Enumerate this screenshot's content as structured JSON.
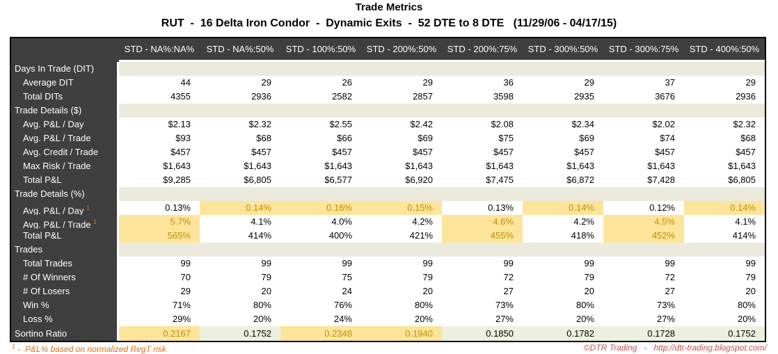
{
  "page": {
    "title": "Trade Metrics",
    "subtitle": "RUT  -  16 Delta Iron Condor  -  Dynamic Exits  -  52 DTE to 8 DTE   (11/29/06 - 04/17/15)",
    "footnote_sup": "1",
    "footnote_text": " -  P&L% based on normalized RegT risk",
    "credit": "©DTR Trading   -   http://dtr-trading.blogspot.com/"
  },
  "colors": {
    "header_bg": "#3f3f3f",
    "section_band_bg": "#ece9dd",
    "highlight_bg": "#fce49b",
    "highlight_text": "#bf8f00",
    "summary_bg": "#ebf1de",
    "footnote_text": "#e36c0a",
    "credit_text": "#c0504d"
  },
  "table": {
    "columns": [
      "STD - NA%:NA%",
      "STD - NA%:50%",
      "STD - 100%:50%",
      "STD - 200%:50%",
      "STD - 200%:75%",
      "STD - 300%:50%",
      "STD - 300%:75%",
      "STD - 400%:50%"
    ],
    "sections": [
      {
        "label": "Days In Trade (DIT)",
        "rows": [
          {
            "label": "Average DIT",
            "values": [
              "44",
              "29",
              "26",
              "29",
              "36",
              "29",
              "37",
              "29"
            ]
          },
          {
            "label": "Total DITs",
            "values": [
              "4355",
              "2936",
              "2582",
              "2857",
              "3598",
              "2935",
              "3676",
              "2936"
            ]
          }
        ]
      },
      {
        "label": "Trade Details ($)",
        "rows": [
          {
            "label": "Avg. P&L / Day",
            "values": [
              "$2.13",
              "$2.32",
              "$2.55",
              "$2.42",
              "$2.08",
              "$2.34",
              "$2.02",
              "$2.32"
            ]
          },
          {
            "label": "Avg. P&L / Trade",
            "values": [
              "$93",
              "$68",
              "$66",
              "$69",
              "$75",
              "$69",
              "$74",
              "$68"
            ]
          },
          {
            "label": "Avg. Credit / Trade",
            "values": [
              "$457",
              "$457",
              "$457",
              "$457",
              "$457",
              "$457",
              "$457",
              "$457"
            ]
          },
          {
            "label": "Max Risk / Trade",
            "values": [
              "$1,643",
              "$1,643",
              "$1,643",
              "$1,643",
              "$1,643",
              "$1,643",
              "$1,643",
              "$1,643"
            ]
          },
          {
            "label": "Total P&L",
            "values": [
              "$9,285",
              "$6,805",
              "$6,577",
              "$6,920",
              "$7,475",
              "$6,872",
              "$7,428",
              "$6,805"
            ]
          }
        ]
      },
      {
        "label": "Trade Details (%)",
        "rows": [
          {
            "label": "Avg. P&L / Day ",
            "sup": "1",
            "values": [
              "0.13%",
              "0.14%",
              "0.16%",
              "0.15%",
              "0.13%",
              "0.14%",
              "0.12%",
              "0.14%"
            ],
            "highlight": [
              false,
              true,
              true,
              true,
              false,
              true,
              false,
              true
            ]
          },
          {
            "label": "Avg. P&L / Trade ",
            "sup": "1",
            "values": [
              "5.7%",
              "4.1%",
              "4.0%",
              "4.2%",
              "4.6%",
              "4.2%",
              "4.5%",
              "4.1%"
            ],
            "highlight": [
              true,
              false,
              false,
              false,
              true,
              false,
              true,
              false
            ]
          },
          {
            "label": "Total P&L",
            "values": [
              "565%",
              "414%",
              "400%",
              "421%",
              "455%",
              "418%",
              "452%",
              "414%"
            ],
            "highlight": [
              true,
              false,
              false,
              false,
              true,
              false,
              true,
              false
            ]
          }
        ]
      },
      {
        "label": "Trades",
        "rows": [
          {
            "label": "Total Trades",
            "values": [
              "99",
              "99",
              "99",
              "99",
              "99",
              "99",
              "99",
              "99"
            ]
          },
          {
            "label": "# Of Winners",
            "values": [
              "70",
              "79",
              "75",
              "79",
              "72",
              "79",
              "72",
              "79"
            ]
          },
          {
            "label": "# Of Losers",
            "values": [
              "29",
              "20",
              "24",
              "20",
              "27",
              "20",
              "27",
              "20"
            ]
          },
          {
            "label": "Win %",
            "values": [
              "71%",
              "80%",
              "76%",
              "80%",
              "73%",
              "80%",
              "73%",
              "80%"
            ]
          },
          {
            "label": "Loss %",
            "values": [
              "29%",
              "20%",
              "24%",
              "20%",
              "27%",
              "20%",
              "27%",
              "20%"
            ]
          }
        ]
      }
    ],
    "summary_row": {
      "label": "Sortino Ratio",
      "values": [
        "0.2167",
        "0.1752",
        "0.2348",
        "0.1940",
        "0.1850",
        "0.1782",
        "0.1728",
        "0.1752"
      ],
      "highlight": [
        true,
        false,
        true,
        true,
        false,
        false,
        false,
        false
      ]
    }
  }
}
